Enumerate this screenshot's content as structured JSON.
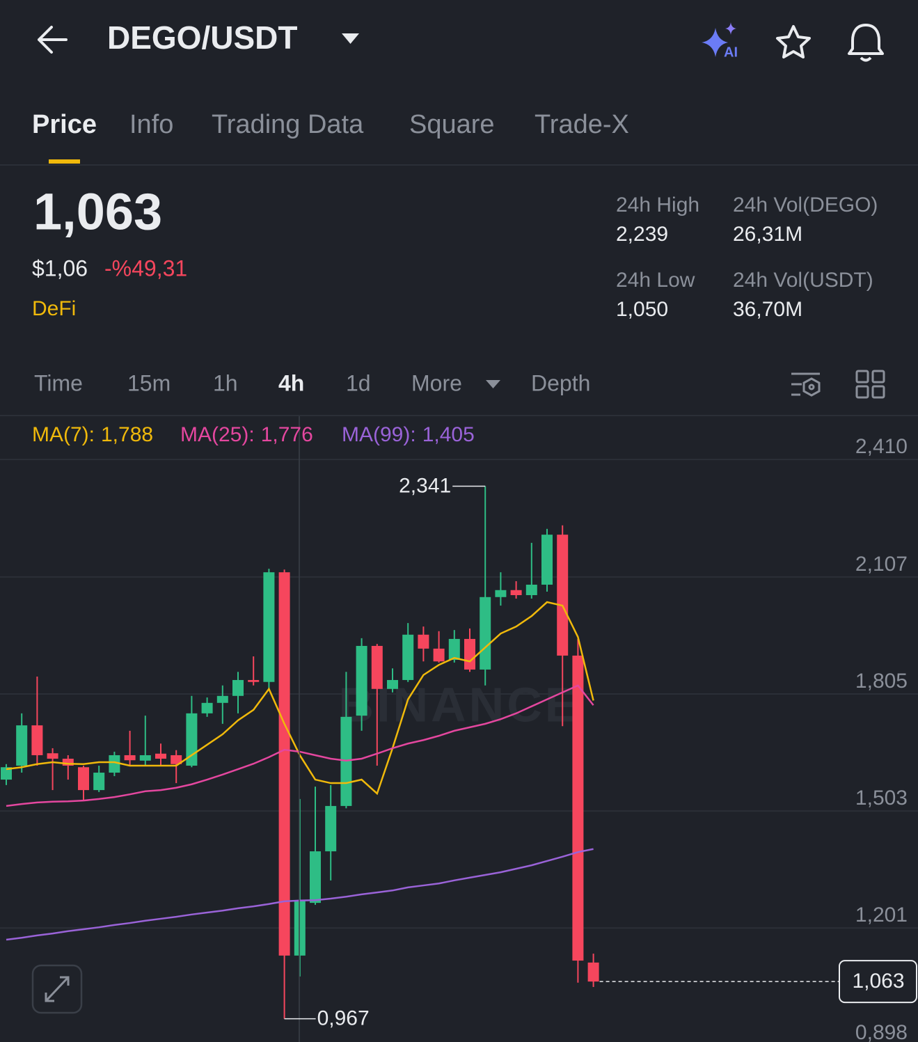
{
  "header": {
    "title": "DEGO/USDT"
  },
  "tabs": [
    "Price",
    "Info",
    "Trading Data",
    "Square",
    "Trade-X"
  ],
  "ticker": {
    "price": "1,063",
    "usd_price": "$1,06",
    "change": "-%49,31",
    "tag": "DeFi",
    "stats": [
      {
        "label": "24h High",
        "value": "2,239"
      },
      {
        "label": "24h Vol(DEGO)",
        "value": "26,31M"
      },
      {
        "label": "24h Low",
        "value": "1,050"
      },
      {
        "label": "24h Vol(USDT)",
        "value": "36,70M"
      }
    ]
  },
  "intervals": [
    "Time",
    "15m",
    "1h",
    "4h",
    "1d",
    "More",
    "Depth"
  ],
  "chart_data": {
    "type": "candlestick",
    "up_color": "#2ebd85",
    "down_color": "#f6465d",
    "open": [
      1.584,
      1.62,
      1.724,
      1.652,
      1.638,
      1.616,
      1.557,
      1.602,
      1.647,
      1.633,
      1.651,
      1.647,
      1.62,
      1.755,
      1.782,
      1.8,
      1.841,
      1.836,
      2.119,
      1.13,
      1.266,
      1.399,
      1.516,
      1.749,
      1.929,
      1.818,
      1.841,
      1.958,
      1.922,
      1.893,
      1.947,
      1.868,
      2.055,
      2.073,
      2.06,
      2.087,
      2.216,
      1.904,
      1.112
    ],
    "high": [
      1.624,
      1.755,
      1.85,
      1.665,
      1.647,
      1.62,
      1.62,
      1.656,
      1.71,
      1.749,
      1.677,
      1.66,
      1.8,
      1.796,
      1.827,
      1.862,
      1.902,
      2.128,
      2.126,
      1.534,
      1.566,
      1.57,
      1.862,
      1.949,
      1.934,
      1.871,
      1.988,
      1.979,
      1.967,
      1.97,
      1.974,
      2.341,
      2.119,
      2.096,
      2.195,
      2.231,
      2.24,
      1.947,
      1.135
    ],
    "low": [
      1.57,
      1.602,
      1.62,
      1.557,
      1.584,
      1.53,
      1.552,
      1.593,
      1.62,
      1.62,
      1.62,
      1.575,
      1.616,
      1.746,
      1.728,
      1.755,
      1.827,
      1.818,
      0.967,
      1.076,
      1.261,
      1.324,
      1.51,
      1.71,
      1.62,
      1.809,
      1.836,
      1.889,
      1.886,
      1.886,
      1.862,
      1.827,
      2.033,
      2.051,
      2.051,
      2.069,
      1.722,
      1.06,
      1.049
    ],
    "close": [
      1.616,
      1.724,
      1.647,
      1.638,
      1.62,
      1.557,
      1.602,
      1.647,
      1.634,
      1.647,
      1.638,
      1.624,
      1.755,
      1.782,
      1.8,
      1.841,
      1.836,
      2.119,
      1.13,
      1.273,
      1.399,
      1.516,
      1.746,
      1.929,
      1.818,
      1.841,
      1.958,
      1.922,
      1.889,
      1.947,
      1.868,
      2.055,
      2.073,
      2.06,
      2.087,
      2.216,
      1.904,
      1.117,
      1.063
    ],
    "ma_series": [
      {
        "name": "MA(7):",
        "value_label": "1,788",
        "color": "#f0b90b",
        "values": [
          1.611,
          1.616,
          1.624,
          1.629,
          1.625,
          1.624,
          1.629,
          1.629,
          1.62,
          1.62,
          1.62,
          1.62,
          1.647,
          1.674,
          1.701,
          1.737,
          1.764,
          1.818,
          1.728,
          1.647,
          1.584,
          1.575,
          1.575,
          1.584,
          1.548,
          1.665,
          1.791,
          1.854,
          1.88,
          1.898,
          1.889,
          1.925,
          1.961,
          1.979,
          2.006,
          2.042,
          2.033,
          1.952,
          1.788
        ]
      },
      {
        "name": "MA(25):",
        "value_label": "1,776",
        "color": "#e4479f",
        "values": [
          1.516,
          1.521,
          1.525,
          1.527,
          1.528,
          1.53,
          1.534,
          1.539,
          1.546,
          1.554,
          1.557,
          1.563,
          1.572,
          1.584,
          1.597,
          1.611,
          1.625,
          1.642,
          1.661,
          1.656,
          1.647,
          1.638,
          1.633,
          1.638,
          1.651,
          1.665,
          1.677,
          1.686,
          1.697,
          1.71,
          1.719,
          1.728,
          1.74,
          1.755,
          1.773,
          1.791,
          1.809,
          1.827,
          1.776
        ]
      },
      {
        "name": "MA(99):",
        "value_label": "1,405",
        "color": "#9a63d8",
        "values": [
          1.171,
          1.176,
          1.182,
          1.187,
          1.193,
          1.198,
          1.203,
          1.209,
          1.214,
          1.22,
          1.225,
          1.23,
          1.236,
          1.241,
          1.246,
          1.252,
          1.257,
          1.263,
          1.27,
          1.272,
          1.273,
          1.277,
          1.282,
          1.288,
          1.293,
          1.298,
          1.306,
          1.311,
          1.316,
          1.324,
          1.331,
          1.338,
          1.345,
          1.354,
          1.363,
          1.374,
          1.385,
          1.397,
          1.405
        ]
      }
    ],
    "ylim": [
      0.907,
      2.518
    ],
    "yticks": [
      {
        "value": 2.41,
        "label": "2,410"
      },
      {
        "value": 2.107,
        "label": "2,107"
      },
      {
        "value": 1.805,
        "label": "1,805"
      },
      {
        "value": 1.503,
        "label": "1,503"
      },
      {
        "value": 1.201,
        "label": "1,201"
      },
      {
        "value": 0.898,
        "label": "0,898"
      }
    ],
    "grid": true,
    "annotations": [
      {
        "value": 2.341,
        "label": "2,341"
      },
      {
        "value": 0.967,
        "label": "0,967"
      }
    ],
    "last_price": {
      "value": 1.063,
      "label": "1,063"
    },
    "watermark": "BINANCE"
  }
}
